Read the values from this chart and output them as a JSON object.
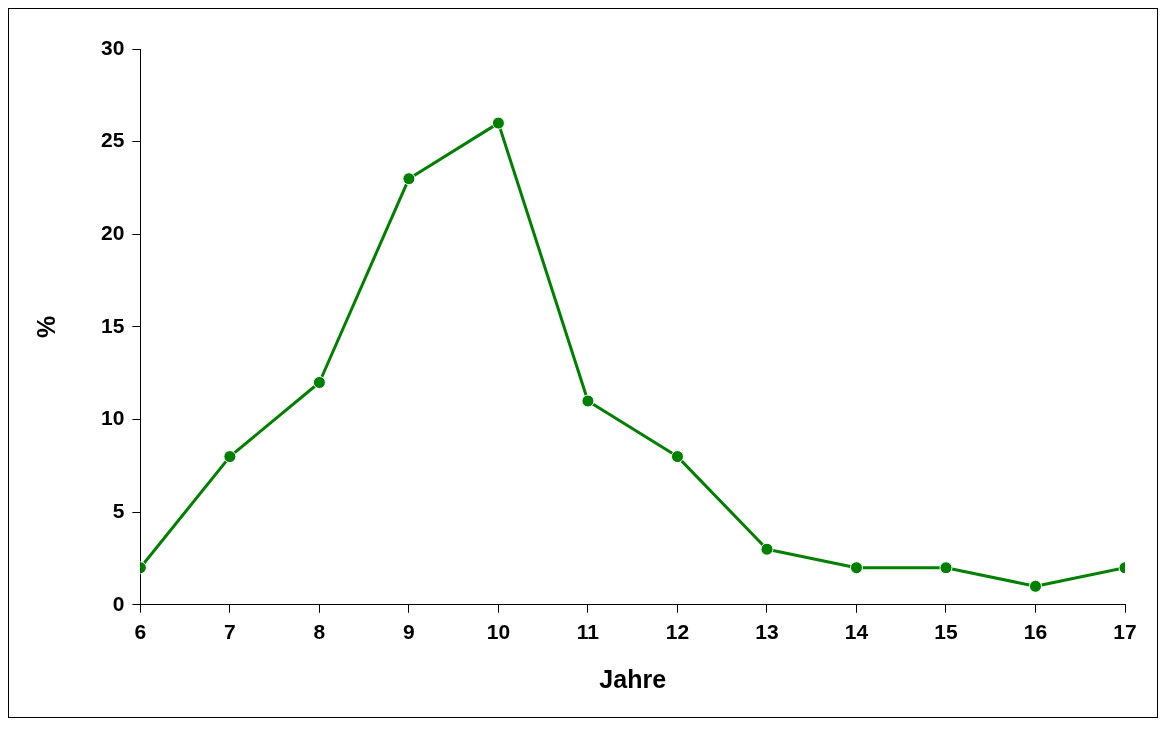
{
  "chart_data": {
    "type": "line",
    "xlabel": "Jahre",
    "ylabel": "%",
    "x": [
      6,
      7,
      8,
      9,
      10,
      11,
      12,
      13,
      14,
      15,
      16,
      17
    ],
    "series": [
      {
        "color": "#008000",
        "values": [
          2,
          8,
          12,
          23,
          26,
          11,
          8,
          3,
          2,
          2,
          1,
          2
        ]
      }
    ],
    "xlim": [
      6,
      17
    ],
    "xticks": [
      6,
      7,
      8,
      9,
      10,
      11,
      12,
      13,
      14,
      15,
      16,
      17
    ],
    "ylim": [
      0,
      30
    ],
    "yticks": [
      0,
      5,
      10,
      15,
      20,
      25,
      30
    ],
    "grid": false,
    "legend": false,
    "marker": "circle",
    "line_style": "solid"
  }
}
